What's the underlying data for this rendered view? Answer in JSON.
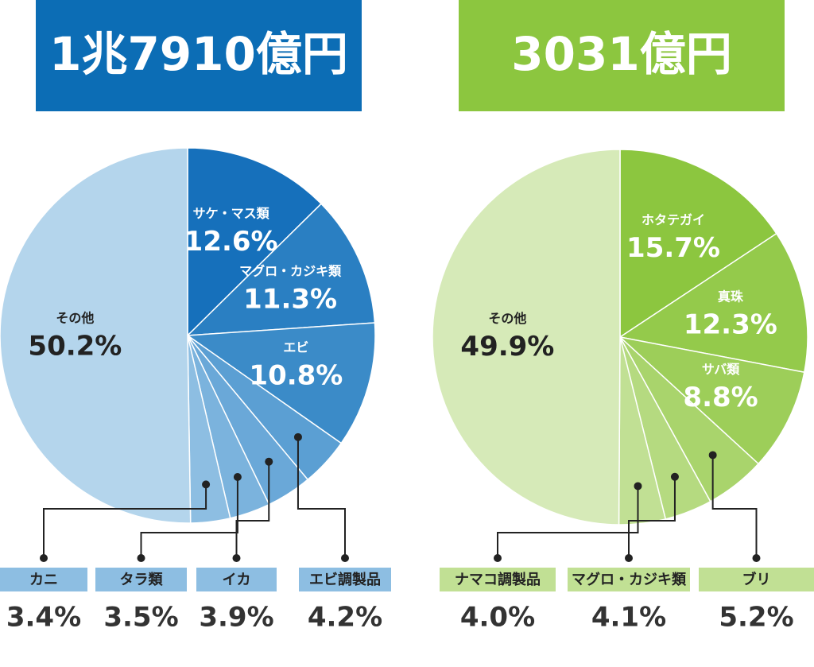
{
  "chart_data": [
    {
      "type": "pie",
      "title": "1兆7910億円",
      "header_color": "#0c6db5",
      "categories": [
        "サケ・マス類",
        "マグロ・カジキ類",
        "エビ",
        "エビ調製品",
        "イカ",
        "タラ類",
        "カニ",
        "その他"
      ],
      "values": [
        12.6,
        11.3,
        10.8,
        4.2,
        3.9,
        3.5,
        3.4,
        50.2
      ],
      "value_labels": [
        "12.6%",
        "11.3%",
        "10.8%",
        "4.2%",
        "3.9%",
        "3.5%",
        "3.4%",
        "50.2%"
      ],
      "colors": [
        "#1670bb",
        "#2a7fc2",
        "#3b8bc8",
        "#5b9fd3",
        "#6aa8d8",
        "#7bb3dd",
        "#8dbee2",
        "#b4d5ec"
      ]
    },
    {
      "type": "pie",
      "title": "3031億円",
      "header_color": "#8cc63f",
      "categories": [
        "ホタテガイ",
        "真珠",
        "サバ類",
        "ブリ",
        "マグロ・カジキ類",
        "ナマコ調製品",
        "その他"
      ],
      "values": [
        15.7,
        12.3,
        8.8,
        5.2,
        4.1,
        4.0,
        49.9
      ],
      "value_labels": [
        "15.7%",
        "12.3%",
        "8.8%",
        "5.2%",
        "4.1%",
        "4.0%",
        "49.9%"
      ],
      "colors": [
        "#8cc63f",
        "#94ca4b",
        "#9dce59",
        "#a9d46c",
        "#b5da80",
        "#c1e094",
        "#d6eab8"
      ]
    }
  ]
}
